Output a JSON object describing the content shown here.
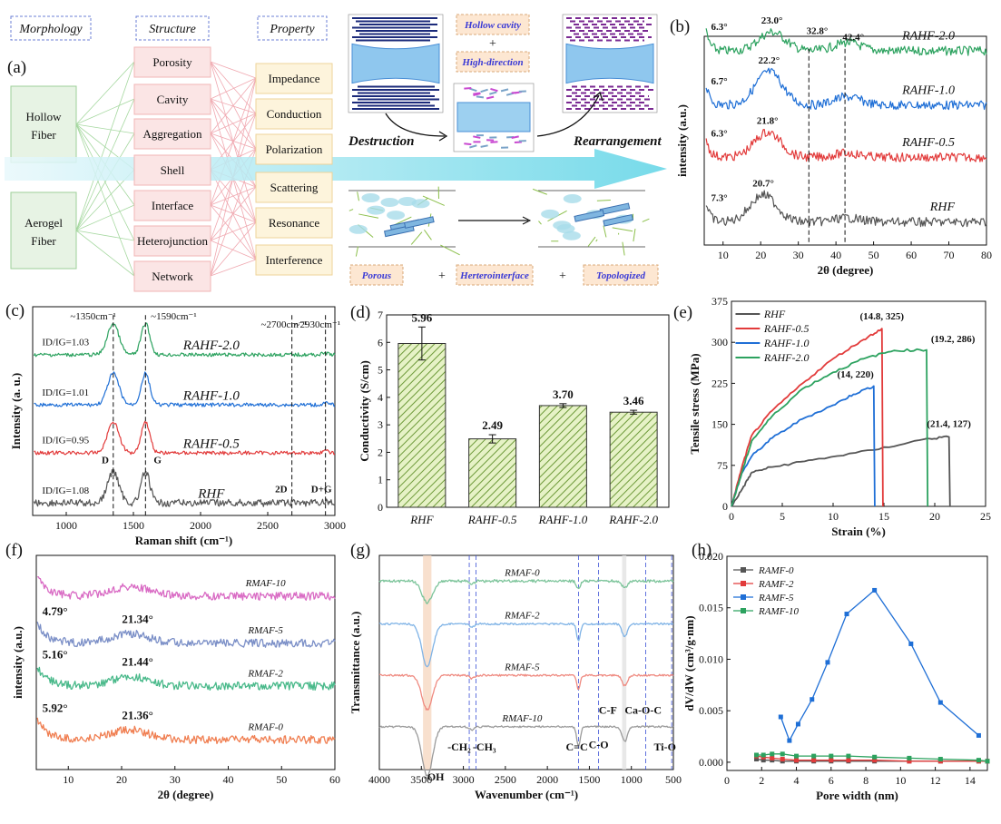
{
  "panel_labels": {
    "a": "(a)",
    "b": "(b)",
    "c": "(c)",
    "d": "(d)",
    "e": "(e)",
    "f": "(f)",
    "g": "(g)",
    "h": "(h)"
  },
  "schematic": {
    "headers": [
      "Morphology",
      "Structure",
      "Property"
    ],
    "morphology": [
      "Hollow Fiber",
      "Aerogel Fiber"
    ],
    "structure": [
      "Porosity",
      "Cavity",
      "Aggregation",
      "Shell",
      "Interface",
      "Heterojunction",
      "Network"
    ],
    "property": [
      "Impedance",
      "Conduction",
      "Polarization",
      "Scattering",
      "Resonance",
      "Interference"
    ],
    "tags": {
      "hollow": "Hollow cavity",
      "plus": "+",
      "high": "High-direction",
      "destruction": "Destruction",
      "rearrangement": "Rearrangement",
      "porous": "Porous",
      "hetero": "Herterointerface",
      "topo": "Topologized"
    }
  },
  "chart_data": [
    {
      "panel": "b",
      "type": "line",
      "xlabel": "2θ (degree)",
      "ylabel": "intensity (a.u.)",
      "xlim": [
        5,
        80
      ],
      "xticks": [
        10,
        20,
        30,
        40,
        50,
        60,
        70,
        80
      ],
      "series": [
        {
          "name": "RAHF-2.0",
          "color": "#2ca25f",
          "peaks": [
            "6.3°",
            "23.0°",
            "32.8°",
            "42.4°"
          ]
        },
        {
          "name": "RAHF-1.0",
          "color": "#1f6fd6",
          "peaks": [
            "6.7°",
            "22.2°"
          ]
        },
        {
          "name": "RAHF-0.5",
          "color": "#e23b3b",
          "peaks": [
            "6.3°",
            "21.8°"
          ]
        },
        {
          "name": "RHF",
          "color": "#555555",
          "peaks": [
            "7.3°",
            "20.7°"
          ]
        }
      ],
      "dashed_lines": [
        32.8,
        42.4
      ]
    },
    {
      "panel": "c",
      "type": "line",
      "xlabel": "Raman shift (cm⁻¹)",
      "ylabel": "Intensity (a. u.)",
      "xlim": [
        750,
        3000
      ],
      "xticks": [
        1000,
        1500,
        2000,
        2500,
        3000
      ],
      "series": [
        {
          "name": "RAHF-2.0",
          "color": "#2ca25f",
          "ratio": "I_D/I_G=1.03"
        },
        {
          "name": "RAHF-1.0",
          "color": "#1f6fd6",
          "ratio": "I_D/I_G=1.01"
        },
        {
          "name": "RAHF-0.5",
          "color": "#e23b3b",
          "ratio": "I_D/I_G=0.95"
        },
        {
          "name": "RHF",
          "color": "#555555",
          "ratio": "I_D/I_G=1.08"
        }
      ],
      "annotations": [
        "~1350cm⁻¹",
        "~1590cm⁻¹",
        "~2700cm⁻¹",
        "~2930cm⁻¹",
        "D",
        "G",
        "2D",
        "D+G"
      ],
      "dashed_lines": [
        1350,
        1590,
        2680,
        2930
      ]
    },
    {
      "panel": "d",
      "type": "bar",
      "ylabel": "Conductivity (S/cm)",
      "ylim": [
        0,
        7
      ],
      "yticks": [
        0,
        1,
        2,
        3,
        4,
        5,
        6,
        7
      ],
      "categories": [
        "RHF",
        "RAHF-0.5",
        "RAHF-1.0",
        "RAHF-2.0"
      ],
      "values": [
        5.96,
        2.49,
        3.7,
        3.46
      ],
      "errors": [
        0.6,
        0.15,
        0.07,
        0.07
      ],
      "value_labels": [
        "5.96",
        "2.49",
        "3.70",
        "3.46"
      ]
    },
    {
      "panel": "e",
      "type": "line",
      "xlabel": "Strain (%)",
      "ylabel": "Tensile stress (MPa)",
      "xlim": [
        0,
        25
      ],
      "ylim": [
        0,
        375
      ],
      "xticks": [
        0,
        5,
        10,
        15,
        20,
        25
      ],
      "yticks": [
        0,
        75,
        150,
        225,
        300,
        375
      ],
      "series": [
        {
          "name": "RHF",
          "color": "#555555",
          "end": [
            21.4,
            127
          ],
          "label": "(21.4, 127)"
        },
        {
          "name": "RAHF-0.5",
          "color": "#e23b3b",
          "end": [
            14.8,
            325
          ],
          "label": "(14.8, 325)"
        },
        {
          "name": "RAHF-1.0",
          "color": "#1f6fd6",
          "end": [
            14,
            220
          ],
          "label": "(14, 220)"
        },
        {
          "name": "RAHF-2.0",
          "color": "#2ca25f",
          "end": [
            19.2,
            286
          ],
          "label": "(19.2, 286)"
        }
      ]
    },
    {
      "panel": "f",
      "type": "line",
      "xlabel": "2θ (degree)",
      "ylabel": "intensity (a.u.)",
      "xlim": [
        4,
        60
      ],
      "xticks": [
        10,
        20,
        30,
        40,
        50,
        60
      ],
      "series": [
        {
          "name": "RMAF-10",
          "color": "#d96bc4",
          "peaks": []
        },
        {
          "name": "RMAF-5",
          "color": "#7b8fc7",
          "peaks": [
            "4.79°",
            "21.34°"
          ]
        },
        {
          "name": "RMAF-2",
          "color": "#49b98a",
          "peaks": [
            "5.16°",
            "21.44°"
          ]
        },
        {
          "name": "RMAF-0",
          "color": "#f07f52",
          "peaks": [
            "5.92°",
            "21.36°"
          ]
        }
      ]
    },
    {
      "panel": "g",
      "type": "line",
      "xlabel": "Wavenumber (cm⁻¹)",
      "ylabel": "Transmittance (a.u.)",
      "xlim": [
        4000,
        500
      ],
      "xticks": [
        4000,
        3500,
        3000,
        2500,
        2000,
        1500,
        1000,
        500
      ],
      "series": [
        {
          "name": "RMAF-0",
          "color": "#7cc49a"
        },
        {
          "name": "RMAF-2",
          "color": "#7fb3e6"
        },
        {
          "name": "RMAF-5",
          "color": "#ef8a80"
        },
        {
          "name": "RMAF-10",
          "color": "#9a9a9a"
        }
      ],
      "annotations": [
        "-OH",
        "-CH₂",
        "-CH₃",
        "C=C",
        "C-O",
        "C-F",
        "Ca-O-C",
        "Ti-O"
      ]
    },
    {
      "panel": "h",
      "type": "line",
      "xlabel": "Pore width (nm)",
      "ylabel": "dV/dW (cm³/g·nm)",
      "xlim": [
        0,
        15
      ],
      "ylim": [
        -0.0008,
        0.02
      ],
      "xticks": [
        0,
        2,
        4,
        6,
        8,
        10,
        12,
        14
      ],
      "yticks": [
        0.0,
        0.005,
        0.01,
        0.015,
        0.02
      ],
      "ytick_labels": [
        "0.000",
        "0.005",
        "0.010",
        "0.015",
        "0.020"
      ],
      "series": [
        {
          "name": "RAMF-0",
          "color": "#555555",
          "x": [
            1.7,
            2.1,
            2.6,
            3.2,
            4,
            5,
            6,
            7,
            8.5,
            10.5,
            12.3,
            14.5,
            15
          ],
          "y": [
            0.0003,
            0.0002,
            0.0002,
            0.0001,
            0.0001,
            0.0001,
            0.0001,
            0.0001,
            0.0001,
            0.0001,
            0.0001,
            0.0001,
            0.0001
          ]
        },
        {
          "name": "RAMF-2",
          "color": "#e23b3b",
          "x": [
            1.7,
            2.1,
            2.6,
            3.2,
            4,
            5,
            6,
            7,
            8.5,
            10.5,
            12.3,
            14.5,
            15
          ],
          "y": [
            0.0006,
            0.0005,
            0.0004,
            0.0003,
            0.0002,
            0.0002,
            0.0002,
            0.0002,
            0.0002,
            0.0001,
            0.0001,
            0.0001,
            0.0001
          ]
        },
        {
          "name": "RAMF-5",
          "color": "#1f6fd6",
          "x": [
            3.1,
            3.6,
            4.1,
            4.9,
            5.8,
            6.9,
            8.5,
            10.6,
            12.3,
            14.5
          ],
          "y": [
            0.0044,
            0.0021,
            0.0037,
            0.0061,
            0.0097,
            0.0144,
            0.0167,
            0.0115,
            0.0058,
            0.0026
          ]
        },
        {
          "name": "RAMF-10",
          "color": "#2ca25f",
          "x": [
            1.7,
            2.1,
            2.6,
            3.2,
            4,
            5,
            6,
            7,
            8.5,
            10.5,
            12.3,
            14.5,
            15
          ],
          "y": [
            0.0007,
            0.0007,
            0.0008,
            0.0008,
            0.0006,
            0.0006,
            0.0006,
            0.0006,
            0.0005,
            0.0004,
            0.0003,
            0.0002,
            0.0001
          ]
        }
      ]
    }
  ]
}
